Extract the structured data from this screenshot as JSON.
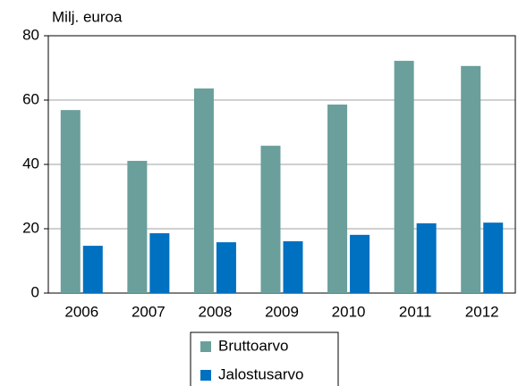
{
  "chart_data": {
    "type": "bar",
    "y_label": "Milj. euroa",
    "categories": [
      "2006",
      "2007",
      "2008",
      "2009",
      "2010",
      "2011",
      "2012"
    ],
    "series": [
      {
        "name": "Bruttoarvo",
        "color": "#6a9f9b",
        "values": [
          56.9,
          41.1,
          63.6,
          45.8,
          58.6,
          72.2,
          70.6
        ]
      },
      {
        "name": "Jalostusarvo",
        "color": "#0070c0",
        "values": [
          14.7,
          18.6,
          15.8,
          16.1,
          18.1,
          21.7,
          21.9
        ]
      }
    ],
    "ylim": [
      0,
      80
    ],
    "yticks": [
      0,
      20,
      40,
      60,
      80
    ],
    "grid": true
  }
}
